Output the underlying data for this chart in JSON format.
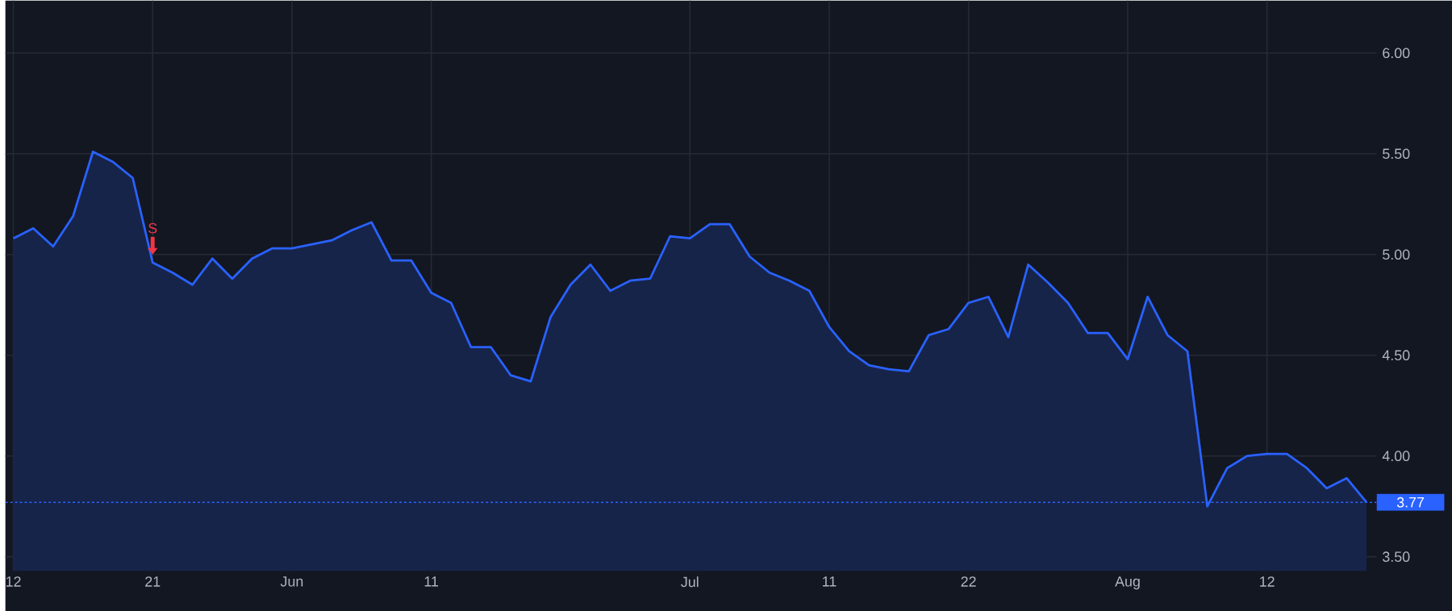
{
  "chart_data": {
    "type": "area",
    "categories": [
      "12",
      null,
      null,
      null,
      null,
      null,
      null,
      "21",
      null,
      null,
      null,
      null,
      null,
      null,
      "Jun",
      null,
      null,
      null,
      null,
      null,
      null,
      "11",
      null,
      null,
      null,
      null,
      null,
      null,
      null,
      null,
      null,
      null,
      null,
      null,
      "Jul",
      null,
      null,
      null,
      null,
      null,
      null,
      "11",
      null,
      null,
      null,
      null,
      null,
      null,
      "22",
      null,
      null,
      null,
      null,
      null,
      null,
      null,
      "Aug",
      null,
      null,
      null,
      null,
      null,
      null,
      "12",
      null,
      null,
      null,
      null,
      null
    ],
    "series": [
      {
        "color": "#2962ff",
        "values": [
          5.08,
          5.13,
          5.04,
          5.19,
          5.51,
          5.46,
          5.38,
          4.96,
          4.91,
          4.85,
          4.98,
          4.88,
          4.98,
          5.03,
          5.03,
          5.05,
          5.07,
          5.12,
          5.16,
          4.97,
          4.97,
          4.81,
          4.76,
          4.54,
          4.54,
          4.4,
          4.37,
          4.69,
          4.85,
          4.95,
          4.82,
          4.87,
          4.88,
          5.09,
          5.08,
          5.15,
          5.15,
          4.99,
          4.91,
          4.87,
          4.82,
          4.64,
          4.52,
          4.45,
          4.43,
          4.42,
          4.6,
          4.63,
          4.76,
          4.79,
          4.59,
          4.95,
          4.86,
          4.76,
          4.61,
          4.61,
          4.48,
          4.79,
          4.6,
          4.52,
          3.75,
          3.94,
          4.0,
          4.01,
          4.01,
          3.94,
          3.84,
          3.89,
          3.77
        ]
      }
    ],
    "ylim": [
      3.43,
      6.26
    ],
    "yticks": [
      {
        "value": 3.5,
        "label": "3.50"
      },
      {
        "value": 4.0,
        "label": "4.00"
      },
      {
        "value": 4.5,
        "label": "4.50"
      },
      {
        "value": 5.0,
        "label": "5.00"
      },
      {
        "value": 5.5,
        "label": "5.50"
      },
      {
        "value": 6.0,
        "label": "6.00"
      }
    ],
    "grid": true,
    "ref_lines": [
      {
        "axis": "y",
        "value": 3.77,
        "label": "3.77",
        "color": "#2962ff",
        "line_style": "dotted"
      }
    ],
    "annotations": [
      {
        "text": "S",
        "x": "21",
        "y": 4.96
      }
    ]
  }
}
